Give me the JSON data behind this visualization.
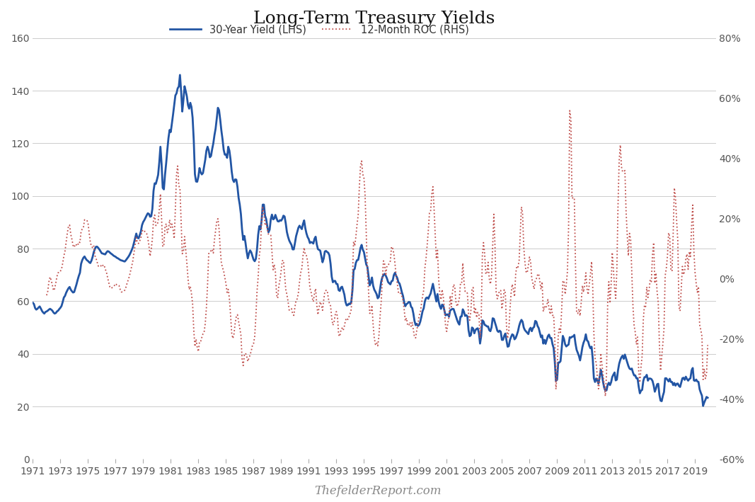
{
  "title": "Long-Term Treasury Yields",
  "legend_lhs": "30-Year Yield (LHS)",
  "legend_rhs": "12-Month ROC (RHS)",
  "lhs_color": "#2255a4",
  "rhs_color": "#c0504d",
  "lhs_linewidth": 2.0,
  "rhs_linewidth": 1.3,
  "ylim_lhs": [
    0,
    160
  ],
  "ylim_rhs": [
    -0.6,
    0.8
  ],
  "yticks_lhs": [
    0,
    20,
    40,
    60,
    80,
    100,
    120,
    140,
    160
  ],
  "yticks_rhs": [
    -0.6,
    -0.4,
    -0.2,
    0.0,
    0.2,
    0.4,
    0.6,
    0.8
  ],
  "ytick_labels_rhs": [
    "-60%",
    "-40%",
    "-20%",
    "0%",
    "20%",
    "40%",
    "60%",
    "80%"
  ],
  "xtick_years": [
    1971,
    1973,
    1975,
    1977,
    1979,
    1981,
    1983,
    1985,
    1987,
    1989,
    1991,
    1993,
    1995,
    1997,
    1999,
    2001,
    2003,
    2005,
    2007,
    2009,
    2011,
    2013,
    2015,
    2017,
    2019
  ],
  "bg_color": "#ffffff",
  "grid_color": "#cccccc",
  "title_fontsize": 18,
  "tick_fontsize": 10,
  "watermark": "ThefelderReport.com",
  "watermark_fontsize": 12
}
